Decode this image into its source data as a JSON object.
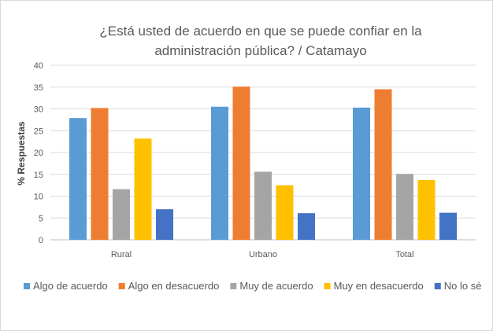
{
  "chart_data": {
    "type": "bar",
    "title_line1": "¿Está usted de acuerdo en que se puede confiar en la",
    "title_line2": "administración pública? / Catamayo",
    "xlabel": "",
    "ylabel": "% Respuestas",
    "ylim": [
      0,
      40
    ],
    "yticks": [
      0,
      5,
      10,
      15,
      20,
      25,
      30,
      35,
      40
    ],
    "grid": true,
    "legend_position": "bottom",
    "categories": [
      "Rural",
      "Urbano",
      "Total"
    ],
    "series": [
      {
        "name": "Algo de acuerdo",
        "color": "#5b9bd5",
        "values": [
          27.9,
          30.5,
          30.3
        ]
      },
      {
        "name": "Algo en desacuerdo",
        "color": "#ed7d31",
        "values": [
          30.2,
          35.1,
          34.5
        ]
      },
      {
        "name": "Muy de acuerdo",
        "color": "#a5a5a5",
        "values": [
          11.6,
          15.6,
          15.1
        ]
      },
      {
        "name": "Muy en desacuerdo",
        "color": "#ffc000",
        "values": [
          23.2,
          12.5,
          13.7
        ]
      },
      {
        "name": "No lo sé",
        "color": "#4472c4",
        "values": [
          7.0,
          6.1,
          6.2
        ]
      }
    ]
  }
}
